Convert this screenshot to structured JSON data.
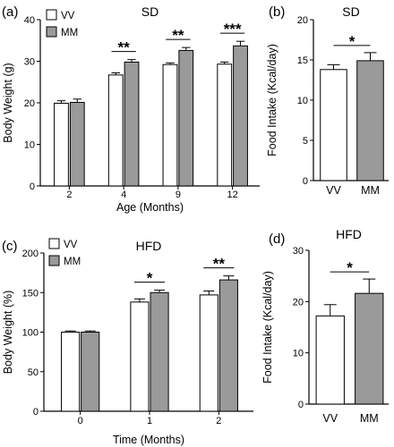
{
  "colors": {
    "VV": "#ffffff",
    "MM": "#9a9a9a",
    "stroke": "#000000"
  },
  "chart_data": [
    {
      "panel_label": "(a)",
      "type": "bar",
      "title": "SD",
      "xlabel": "Age (Months)",
      "ylabel": "Body Weight (g)",
      "categories": [
        "2",
        "4",
        "9",
        "12"
      ],
      "ylim": [
        0,
        40
      ],
      "yticks": [
        0,
        10,
        20,
        30,
        40
      ],
      "series": [
        {
          "name": "VV",
          "values": [
            19.9,
            26.7,
            29.2,
            29.3
          ],
          "errors": [
            0.6,
            0.5,
            0.4,
            0.5
          ]
        },
        {
          "name": "MM",
          "values": [
            20.1,
            29.8,
            32.6,
            33.7
          ],
          "errors": [
            0.8,
            0.6,
            0.7,
            1.1
          ]
        }
      ],
      "significance": [
        {
          "category": "4",
          "label": "**"
        },
        {
          "category": "9",
          "label": "**"
        },
        {
          "category": "12",
          "label": "***"
        }
      ],
      "legend": {
        "placement": "top-left"
      }
    },
    {
      "panel_label": "(b)",
      "type": "bar",
      "title": "SD",
      "xlabel": "",
      "ylabel": "Food Intake (Kcal/day)",
      "categories": [
        "VV",
        "MM"
      ],
      "ylim": [
        0,
        20
      ],
      "yticks": [
        0,
        5,
        10,
        15,
        20
      ],
      "series": [
        {
          "name": "",
          "values": [
            13.8,
            14.9
          ],
          "errors": [
            0.6,
            1.0
          ]
        }
      ],
      "significance": [
        {
          "between": [
            "VV",
            "MM"
          ],
          "label": "*"
        }
      ]
    },
    {
      "panel_label": "(c)",
      "type": "bar",
      "title": "HFD",
      "xlabel": "Time (Months)",
      "ylabel": "Body Weight (%)",
      "categories": [
        "0",
        "1",
        "2"
      ],
      "ylim": [
        0,
        200
      ],
      "yticks": [
        0,
        50,
        100,
        150,
        200
      ],
      "series": [
        {
          "name": "VV",
          "values": [
            100,
            138,
            147
          ],
          "errors": [
            1.5,
            4,
            5
          ]
        },
        {
          "name": "MM",
          "values": [
            100,
            150,
            166
          ],
          "errors": [
            1.5,
            3,
            5
          ]
        }
      ],
      "significance": [
        {
          "category": "1",
          "label": "*"
        },
        {
          "category": "2",
          "label": "**"
        }
      ],
      "legend": {
        "placement": "top-left"
      }
    },
    {
      "panel_label": "(d)",
      "type": "bar",
      "title": "HFD",
      "xlabel": "",
      "ylabel": "Food Intake (Kcal/day)",
      "categories": [
        "VV",
        "MM"
      ],
      "ylim": [
        0,
        30
      ],
      "yticks": [
        0,
        10,
        20,
        30
      ],
      "series": [
        {
          "name": "",
          "values": [
            17.2,
            21.6
          ],
          "errors": [
            2.2,
            2.8
          ]
        }
      ],
      "significance": [
        {
          "between": [
            "VV",
            "MM"
          ],
          "label": "*"
        }
      ]
    }
  ]
}
